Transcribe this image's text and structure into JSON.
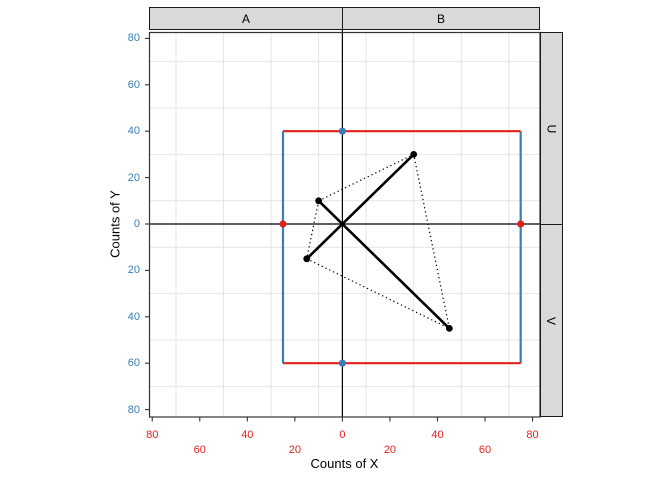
{
  "colors": {
    "red": "#e3211c",
    "blue": "#377eb8",
    "black": "#000000",
    "grid": "#e4e4e4",
    "panel_border": "#333333",
    "strip_bg": "#d9d9d9",
    "strip_border": "#1a1a1a",
    "panel_bg": "#ffffff"
  },
  "facets": {
    "top": [
      "A",
      "B"
    ],
    "right": [
      "U",
      "V"
    ]
  },
  "chart_data": {
    "type": "scatter",
    "title": "",
    "xlabel": "Counts of X",
    "ylabel": "Counts of Y",
    "xlim": [
      -82,
      83
    ],
    "ylim": [
      -83,
      83
    ],
    "grid_on": true,
    "legend": "none",
    "x_axis": {
      "color": "#e3211c",
      "ticks": [
        {
          "value": -80,
          "label": "80",
          "row": 1
        },
        {
          "value": -60,
          "label": "60",
          "row": 2
        },
        {
          "value": -40,
          "label": "40",
          "row": 1
        },
        {
          "value": -20,
          "label": "20",
          "row": 2
        },
        {
          "value": 0,
          "label": "0",
          "row": 1
        },
        {
          "value": 20,
          "label": "20",
          "row": 2
        },
        {
          "value": 40,
          "label": "40",
          "row": 1
        },
        {
          "value": 60,
          "label": "60",
          "row": 2
        },
        {
          "value": 80,
          "label": "80",
          "row": 1
        }
      ]
    },
    "y_axis": {
      "color": "#377eb8",
      "ticks": [
        {
          "value": 80,
          "label": "80"
        },
        {
          "value": 60,
          "label": "60"
        },
        {
          "value": 40,
          "label": "40"
        },
        {
          "value": 20,
          "label": "20"
        },
        {
          "value": 0,
          "label": "0"
        },
        {
          "value": -20,
          "label": "20"
        },
        {
          "value": -40,
          "label": "40"
        },
        {
          "value": -60,
          "label": "60"
        },
        {
          "value": -80,
          "label": "80"
        }
      ]
    },
    "gridlines": {
      "x": [
        -70,
        -50,
        -30,
        -10,
        10,
        30,
        50,
        70
      ],
      "y": [
        -70,
        -50,
        -30,
        -10,
        10,
        30,
        50,
        70
      ]
    },
    "zero_lines": {
      "x": 0,
      "y": 0,
      "color": "#000000"
    },
    "rectangle": {
      "x": [
        -25,
        75
      ],
      "y": [
        -60,
        40
      ],
      "horizontal_color": "#e3211c",
      "vertical_color": "#377eb8"
    },
    "points": {
      "black": [
        [
          -10,
          10
        ],
        [
          30,
          30
        ],
        [
          45,
          -45
        ],
        [
          -15,
          -15
        ]
      ],
      "red": [
        [
          -25,
          0
        ],
        [
          75,
          0
        ]
      ],
      "blue": [
        [
          0,
          40
        ],
        [
          0,
          -60
        ]
      ]
    },
    "solid_segments": [
      [
        [
          -15,
          -15
        ],
        [
          30,
          30
        ]
      ],
      [
        [
          -10,
          10
        ],
        [
          45,
          -45
        ]
      ]
    ],
    "dotted_polygon": [
      [
        -10,
        10
      ],
      [
        30,
        30
      ],
      [
        45,
        -45
      ],
      [
        -15,
        -15
      ]
    ]
  }
}
